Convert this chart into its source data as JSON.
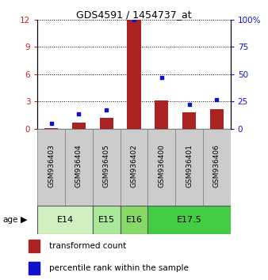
{
  "title": "GDS4591 / 1454737_at",
  "samples": [
    "GSM936403",
    "GSM936404",
    "GSM936405",
    "GSM936402",
    "GSM936400",
    "GSM936401",
    "GSM936406"
  ],
  "red_values": [
    0.1,
    0.7,
    1.2,
    12.0,
    3.1,
    1.8,
    2.2
  ],
  "blue_values": [
    5.0,
    14.0,
    17.0,
    100.0,
    47.0,
    22.0,
    27.0
  ],
  "age_groups": [
    {
      "label": "E14",
      "span": [
        0,
        2
      ],
      "color": "#d0f0c0"
    },
    {
      "label": "E15",
      "span": [
        2,
        3
      ],
      "color": "#a8e898"
    },
    {
      "label": "E16",
      "span": [
        3,
        4
      ],
      "color": "#88d868"
    },
    {
      "label": "E17.5",
      "span": [
        4,
        7
      ],
      "color": "#44cc44"
    }
  ],
  "red_color": "#aa2222",
  "blue_color": "#1111cc",
  "left_ylim": [
    0,
    12
  ],
  "right_ylim": [
    0,
    100
  ],
  "left_yticks": [
    0,
    3,
    6,
    9,
    12
  ],
  "right_yticks": [
    0,
    25,
    50,
    75,
    100
  ],
  "right_yticklabels": [
    "0",
    "25",
    "50",
    "75",
    "100%"
  ],
  "sample_bg_color": "#cccccc",
  "plot_bg": "#ffffff",
  "fig_width": 3.38,
  "fig_height": 3.54
}
